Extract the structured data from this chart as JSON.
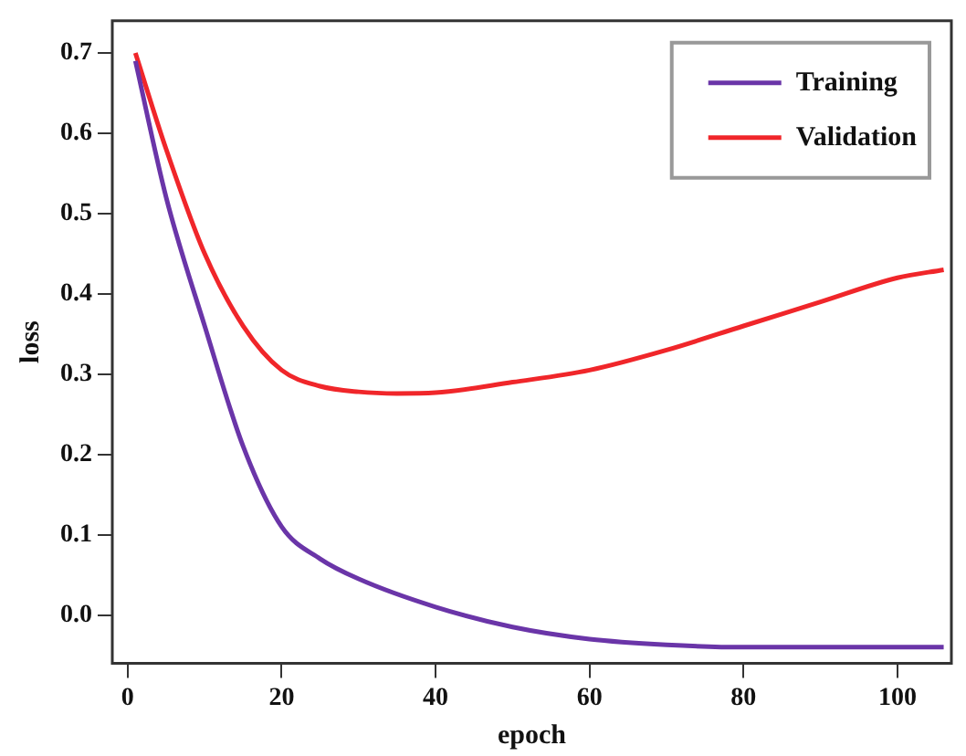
{
  "chart_data": {
    "type": "line",
    "xlabel": "epoch",
    "ylabel": "loss",
    "xlim": [
      -2,
      107
    ],
    "xticks": [
      0,
      20,
      40,
      60,
      80,
      100
    ],
    "ylim": [
      -0.06,
      0.74
    ],
    "yticks": [
      {
        "value": 0,
        "label": "0.0"
      },
      0.1,
      0.2,
      0.3,
      0.4,
      0.5,
      0.6,
      0.7
    ],
    "legend": "top right",
    "grid": false,
    "marker": "none",
    "line_style": "solid",
    "series": [
      {
        "name": "Training",
        "color": "#6a35a8",
        "x": [
          1,
          5,
          10,
          15,
          20,
          25,
          30,
          40,
          50,
          60,
          70,
          80,
          90,
          100,
          106
        ],
        "values": [
          0.69,
          0.52,
          0.36,
          0.21,
          0.11,
          0.07,
          0.045,
          0.01,
          -0.015,
          -0.03,
          -0.037,
          -0.04,
          -0.04,
          -0.04,
          -0.04
        ]
      },
      {
        "name": "Validation",
        "color": "#f0262a",
        "x": [
          1,
          5,
          10,
          15,
          20,
          25,
          30,
          35,
          40,
          50,
          60,
          70,
          80,
          90,
          100,
          106
        ],
        "values": [
          0.7,
          0.58,
          0.45,
          0.36,
          0.305,
          0.285,
          0.278,
          0.276,
          0.277,
          0.29,
          0.305,
          0.33,
          0.36,
          0.39,
          0.42,
          0.43
        ]
      }
    ]
  }
}
